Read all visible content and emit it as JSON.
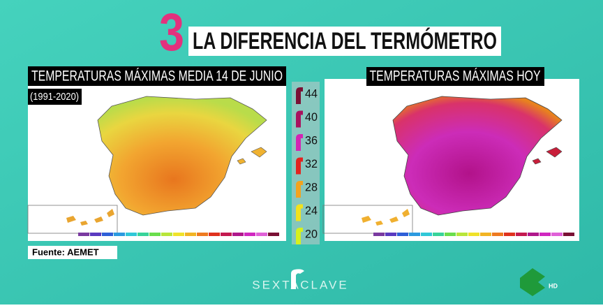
{
  "header": {
    "number": "3",
    "title": "LA DIFERENCIA DEL TERMÓMETRO"
  },
  "left_map": {
    "title": "TEMPERATURAS MÁXIMAS MEDIA 14 DE JUNIO",
    "period": "(1991-2020)"
  },
  "right_map": {
    "title": "TEMPERATURAS MÁXIMAS HOY"
  },
  "legend": [
    {
      "label": "44",
      "color": "#7a1034"
    },
    {
      "label": "40",
      "color": "#a8125e"
    },
    {
      "label": "36",
      "color": "#d424b4"
    },
    {
      "label": "32",
      "color": "#e2231f"
    },
    {
      "label": "28",
      "color": "#f2a31e"
    },
    {
      "label": "24",
      "color": "#f2e21c"
    },
    {
      "label": "20",
      "color": "#d6f01e"
    }
  ],
  "source": "Fuente: AEMET",
  "footer": {
    "brand_left": "SEXTA",
    "brand_right": "CLAVE",
    "channel": "HD"
  }
}
